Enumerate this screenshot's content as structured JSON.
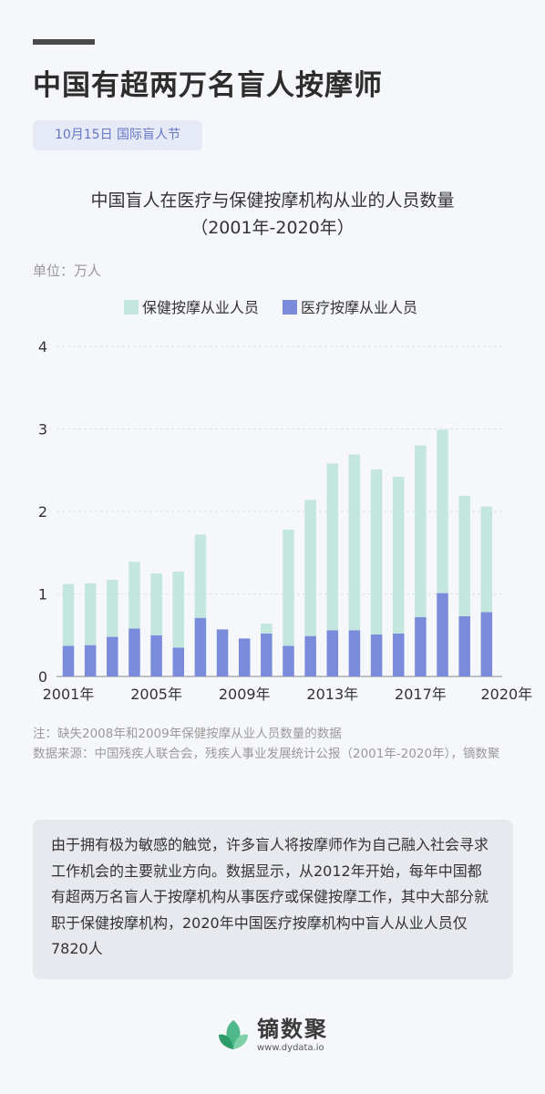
{
  "header": {
    "title": "中国有超两万名盲人按摩师",
    "tag": "10月15日 国际盲人节"
  },
  "chart_title_line1": "中国盲人在医疗与保健按摩机构从业的人员数量",
  "chart_title_line2": "（2001年-2020年）",
  "unit": "单位：万人",
  "notes": {
    "note": "注：缺失2008年和2009年保健按摩从业人员数量的数据",
    "source": "数据来源：中国残疾人联合会，残疾人事业发展统计公报（2001年-2020年），镝数聚"
  },
  "summary": "由于拥有极为敏感的触觉，许多盲人将按摩师作为自己融入社会寻求工作机会的主要就业方向。数据显示，从2012年开始，每年中国都有超两万名盲人于按摩机构从事医疗或保健按摩工作，其中大部分就职于保健按摩机构，2020年中国医疗按摩机构中盲人从业人员仅7820人",
  "brand": {
    "name": "镝数聚",
    "url": "www.dydata.io"
  },
  "colors": {
    "health_massage": "#c3e6df",
    "medical_massage": "#7b8bdb",
    "accent": "#6677c4"
  },
  "chart_data": {
    "type": "bar",
    "stacked": true,
    "categories": [
      "2001",
      "2002",
      "2003",
      "2004",
      "2005",
      "2006",
      "2007",
      "2008",
      "2009",
      "2010",
      "2011",
      "2012",
      "2013",
      "2014",
      "2015",
      "2016",
      "2017",
      "2018",
      "2019",
      "2020"
    ],
    "x_tick_labels": [
      {
        "index": 0,
        "label": "2001年"
      },
      {
        "index": 4,
        "label": "2005年"
      },
      {
        "index": 8,
        "label": "2009年"
      },
      {
        "index": 12,
        "label": "2013年"
      },
      {
        "index": 16,
        "label": "2017年"
      },
      {
        "index": 19,
        "label": "2020年"
      }
    ],
    "series": [
      {
        "name": "医疗按摩从业人员",
        "values": [
          0.37,
          0.38,
          0.48,
          0.58,
          0.5,
          0.35,
          0.71,
          0.57,
          0.46,
          0.52,
          0.37,
          0.49,
          0.56,
          0.56,
          0.51,
          0.52,
          0.72,
          1.01,
          0.73,
          0.78
        ]
      },
      {
        "name": "保健按摩从业人员",
        "values": [
          0.75,
          0.75,
          0.69,
          0.81,
          0.75,
          0.92,
          1.01,
          null,
          null,
          0.12,
          1.41,
          1.65,
          2.02,
          2.13,
          2.0,
          1.9,
          2.08,
          1.98,
          1.46,
          1.28
        ]
      }
    ],
    "legend": [
      "保健按摩从业人员",
      "医疗按摩从业人员"
    ],
    "legend_position": "top",
    "ylim": [
      0,
      4
    ],
    "yticks": [
      0,
      1,
      2,
      3,
      4
    ],
    "grid": true
  }
}
